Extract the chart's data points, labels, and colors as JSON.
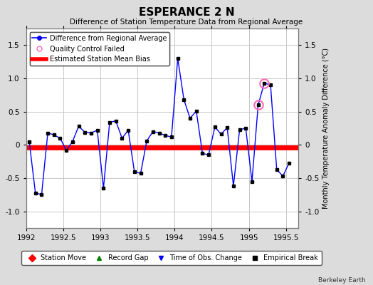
{
  "title": "ESPERANCE 2 N",
  "subtitle": "Difference of Station Temperature Data from Regional Average",
  "ylabel": "Monthly Temperature Anomaly Difference (°C)",
  "watermark": "Berkeley Earth",
  "xlim": [
    1992.0,
    1995.667
  ],
  "ylim": [
    -1.25,
    1.75
  ],
  "yticks": [
    -1.0,
    -0.5,
    0.0,
    0.5,
    1.0,
    1.5
  ],
  "xticks": [
    1992,
    1992.5,
    1993,
    1993.5,
    1994,
    1994.5,
    1995,
    1995.5
  ],
  "bias_value": -0.04,
  "line_color": "#0000FF",
  "bias_color": "#FF0000",
  "marker_color": "#000000",
  "qc_fail_color": "#FF69B4",
  "background_color": "#DCDCDC",
  "plot_bg_color": "#FFFFFF",
  "grid_color": "#C8C8C8",
  "times": [
    1992.042,
    1992.125,
    1992.208,
    1992.292,
    1992.375,
    1992.458,
    1992.542,
    1992.625,
    1992.708,
    1992.792,
    1992.875,
    1992.958,
    1993.042,
    1993.125,
    1993.208,
    1993.292,
    1993.375,
    1993.458,
    1993.542,
    1993.625,
    1993.708,
    1993.792,
    1993.875,
    1993.958,
    1994.042,
    1994.125,
    1994.208,
    1994.292,
    1994.375,
    1994.458,
    1994.542,
    1994.625,
    1994.708,
    1994.792,
    1994.875,
    1994.958,
    1995.042,
    1995.125,
    1995.208,
    1995.292,
    1995.375,
    1995.458,
    1995.542
  ],
  "values": [
    0.05,
    -0.72,
    -0.75,
    0.18,
    0.15,
    0.1,
    -0.08,
    0.05,
    0.28,
    0.19,
    0.18,
    0.22,
    -0.65,
    0.34,
    0.36,
    0.1,
    0.22,
    -0.4,
    -0.43,
    0.06,
    0.2,
    0.18,
    0.14,
    0.12,
    1.3,
    0.68,
    0.4,
    0.51,
    -0.13,
    -0.15,
    0.27,
    0.16,
    0.26,
    -0.62,
    0.23,
    0.25,
    -0.55,
    0.6,
    0.93,
    0.9,
    -0.37,
    -0.47,
    -0.27
  ],
  "qc_failed_indices": [
    37,
    38
  ],
  "title_fontsize": 11,
  "subtitle_fontsize": 7.5,
  "tick_fontsize": 7.5,
  "legend_fontsize": 7,
  "ylabel_fontsize": 7
}
